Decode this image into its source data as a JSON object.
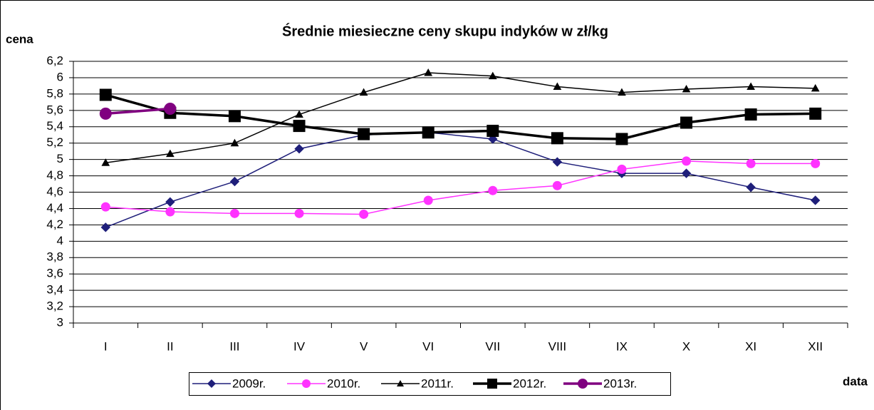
{
  "chart_data": {
    "type": "line",
    "title": "Średnie miesieczne ceny skupu indyków w zł/kg",
    "y_label": "cena",
    "x_label": "data",
    "categories": [
      "I",
      "II",
      "III",
      "IV",
      "V",
      "VI",
      "VII",
      "VIII",
      "IX",
      "X",
      "XI",
      "XII"
    ],
    "ylim": [
      3,
      6.2
    ],
    "yticks": [
      3,
      {
        "value": 3.2,
        "label": "3,2"
      },
      {
        "value": 3.4,
        "label": "3,4"
      },
      {
        "value": 3.6,
        "label": "3,6"
      },
      {
        "value": 3.8,
        "label": "3,8"
      },
      4,
      {
        "value": 4.2,
        "label": "4,2"
      },
      {
        "value": 4.4,
        "label": "4,4"
      },
      {
        "value": 4.6,
        "label": "4,6"
      },
      {
        "value": 4.8,
        "label": "4,8"
      },
      5,
      {
        "value": 5.2,
        "label": "5,2"
      },
      {
        "value": 5.4,
        "label": "5,4"
      },
      {
        "value": 5.6,
        "label": "5,6"
      },
      {
        "value": 5.8,
        "label": "5,8"
      },
      6,
      {
        "value": 6.2,
        "label": "6,2"
      }
    ],
    "grid": true,
    "legend": "bottom",
    "series": [
      {
        "name": "2009r.",
        "color": "#1f1f7a",
        "marker": "diamond",
        "line_width": 1.5,
        "values": [
          4.17,
          4.48,
          4.73,
          5.13,
          5.3,
          5.33,
          5.25,
          4.97,
          4.83,
          4.83,
          4.66,
          4.5
        ]
      },
      {
        "name": "2010r.",
        "color": "#ff33ff",
        "marker": "circle",
        "line_width": 1.5,
        "values": [
          4.42,
          4.36,
          4.34,
          4.34,
          4.33,
          4.5,
          4.62,
          4.68,
          4.88,
          4.98,
          4.95,
          4.95
        ]
      },
      {
        "name": "2011r.",
        "color": "#000000",
        "marker": "triangle",
        "line_width": 1.5,
        "values": [
          4.96,
          5.07,
          5.2,
          5.55,
          5.82,
          6.06,
          6.02,
          5.89,
          5.82,
          5.86,
          5.89,
          5.87
        ]
      },
      {
        "name": "2012r.",
        "color": "#000000",
        "marker": "square",
        "line_width": 3.5,
        "values": [
          5.79,
          5.57,
          5.53,
          5.41,
          5.31,
          5.33,
          5.35,
          5.26,
          5.25,
          5.45,
          5.55,
          5.56
        ]
      },
      {
        "name": "2013r.",
        "color": "#800080",
        "marker": "circle",
        "line_width": 3.5,
        "values": [
          5.56,
          5.62,
          null,
          null,
          null,
          null,
          null,
          null,
          null,
          null,
          null,
          null
        ]
      }
    ]
  }
}
